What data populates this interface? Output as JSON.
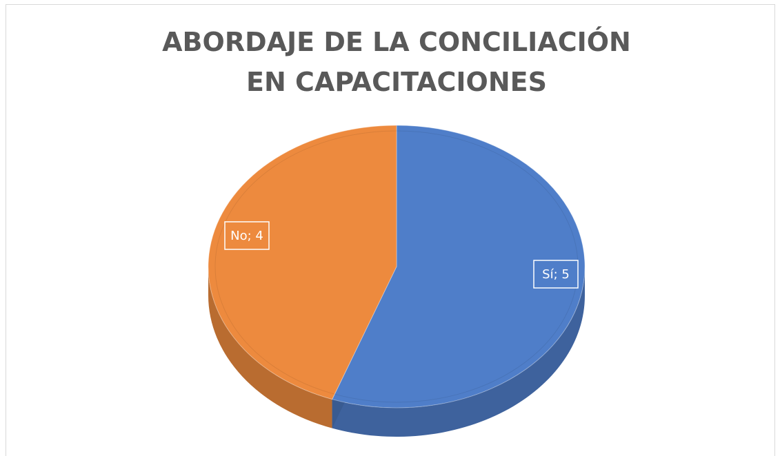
{
  "chart_data": {
    "type": "pie",
    "title": "ABORDAJE DE LA CONCILIACIÓN EN CAPACITACIONES",
    "categories": [
      "Sí",
      "No"
    ],
    "values": [
      5,
      4
    ],
    "value_labels": [
      "Sí; 5",
      "No; 4"
    ],
    "colors": [
      "#4f7ec9",
      "#ed8a3e"
    ]
  }
}
